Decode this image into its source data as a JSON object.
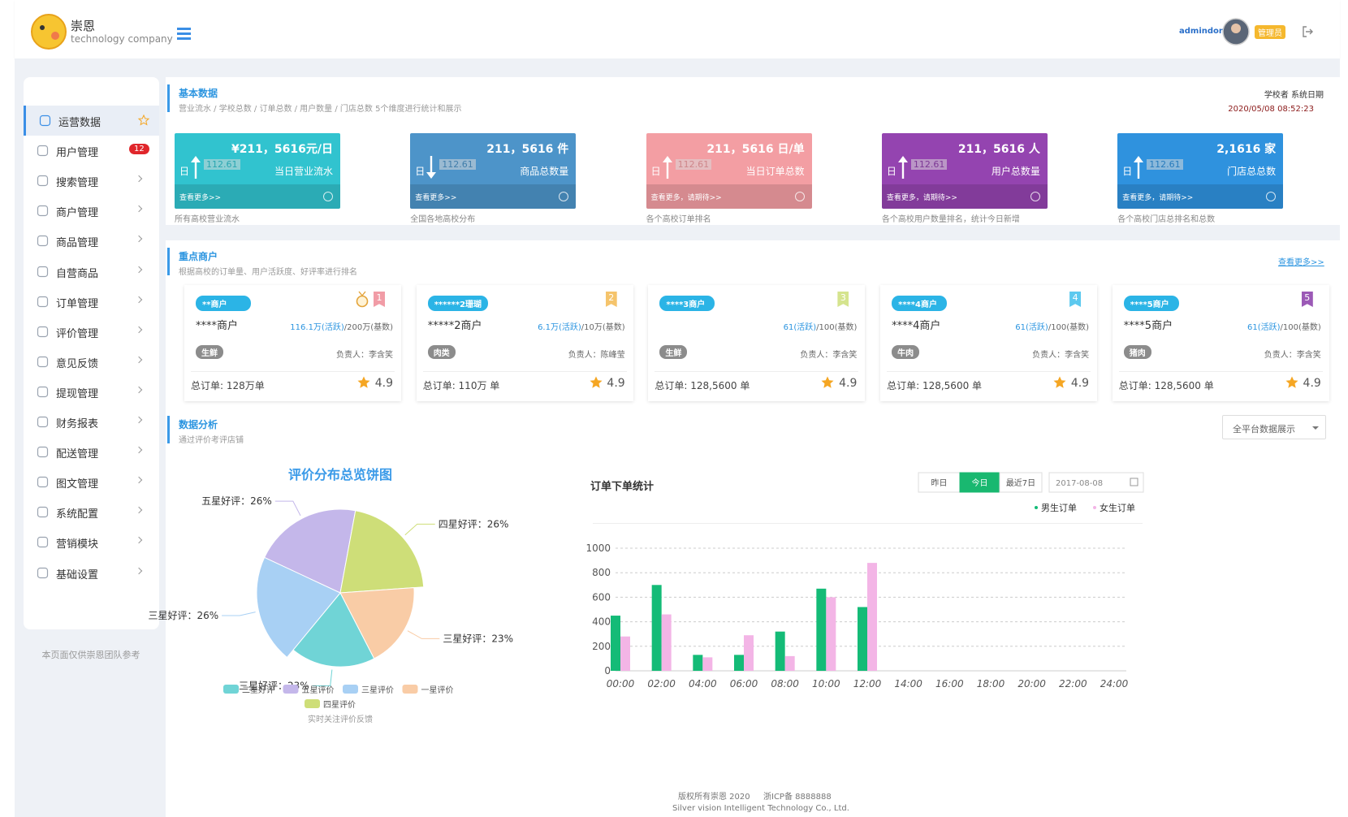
{
  "header": {
    "brand": "崇恩",
    "tagline": "technology company",
    "user": "admindon",
    "role": "管理员"
  },
  "sidebar": {
    "menu": [
      {
        "label": "运营数据",
        "active": true
      },
      {
        "label": "用户管理",
        "badge": 12
      },
      {
        "label": "搜索管理"
      },
      {
        "label": "商户管理"
      },
      {
        "label": "商品管理"
      },
      {
        "label": "自营商品"
      },
      {
        "label": "订单管理"
      },
      {
        "label": "评价管理"
      },
      {
        "label": "意见反馈"
      },
      {
        "label": "提现管理"
      },
      {
        "label": "财务报表"
      },
      {
        "label": "配送管理"
      },
      {
        "label": "图文管理"
      },
      {
        "label": "系统配置"
      },
      {
        "label": "营销模块"
      },
      {
        "label": "基础设置"
      }
    ],
    "note": "本页面仅供崇恩团队参考"
  },
  "basic": {
    "title": "基本数据",
    "subtitle": "营业流水 / 学校总数 / 订单总数 / 用户数量 / 门店总数 5个维度进行统计和展示",
    "right_label": "学校者  系统日期",
    "date": "2020/05/08  08:52:23",
    "cards": [
      {
        "value": "¥211，5616元/日",
        "period": "日",
        "change": "112.61",
        "label": "当日营业流水",
        "link": "查看更多>>",
        "caption": "所有高校营业流水",
        "color": "#31c3cf",
        "trend": "up"
      },
      {
        "value": "211，5616 件",
        "period": "日",
        "change": "112.61",
        "label": "商品总数量",
        "link": "查看更多>>",
        "caption": "全国各地高校分布",
        "color": "#4d94c9",
        "trend": "down"
      },
      {
        "value": "211，5616 日/单",
        "period": "日",
        "change": "112.61",
        "label": "当日订单总数",
        "link": "查看更多，请期待>>",
        "caption": "各个高校订单排名",
        "color": "#f39ea3",
        "trend": "up"
      },
      {
        "value": "211，5616 人",
        "period": "日",
        "change": "112.61",
        "label": "用户总数量",
        "link": "查看更多，请期待>>",
        "caption": "各个高校用户数量排名，统计今日新增",
        "color": "#9444b0",
        "trend": "up"
      },
      {
        "value": "2,1616 家",
        "period": "日",
        "change": "112.61",
        "label": "门店总总数",
        "link": "查看更多，请期待>>",
        "caption": "各个高校门店总排名和总数",
        "color": "#2f92de",
        "trend": "up"
      }
    ]
  },
  "merchants": {
    "title": "重点商户",
    "subtitle": "根据高校的订单量、用户活跃度、好评率进行排名",
    "more": "查看更多>>",
    "cards": [
      {
        "tag": "**商户",
        "rank": "1",
        "rank_color": "#f19ca6",
        "medal": true,
        "name": "****商户",
        "active": "116.1万(活跃)",
        "base": "/200万(基数)",
        "category": "生鲜",
        "owner": "负责人：李含笑",
        "orders": "总订单: 128万单",
        "rating": 4.9
      },
      {
        "tag": "******2珊瑚",
        "rank": "2",
        "rank_color": "#f5c46c",
        "name": "*****2商户",
        "active": "6.1万(活跃)",
        "base": "/10万(基数)",
        "category": "肉类",
        "owner": "负责人：陈峰莹",
        "orders": "总订单: 110万 单",
        "rating": 4.9
      },
      {
        "tag": "****3商户",
        "rank": "3",
        "rank_color": "#d5e48e",
        "active": "61(活跃)",
        "base": "/100(基数)",
        "category": "生鲜",
        "owner": "负责人：李含笑",
        "orders": "总订单: 128,5600 单",
        "rating": 4.9
      },
      {
        "tag": "****4商户",
        "rank": "4",
        "rank_color": "#5cc9ef",
        "name": "****4商户",
        "active": "61(活跃)",
        "base": "/100(基数)",
        "category": "牛肉",
        "owner": "负责人：李含笑",
        "orders": "总订单: 128,5600 单",
        "rating": 4.9
      },
      {
        "tag": "****5商户",
        "rank": "5",
        "rank_color": "#9b59b6",
        "name": "****5商户",
        "active": "61(活跃)",
        "base": "/100(基数)",
        "category": "猪肉",
        "owner": "负责人：李含笑",
        "orders": "总订单: 128,5600 单",
        "rating": 4.9
      }
    ]
  },
  "analysis": {
    "title": "数据分析",
    "subtitle": "通过评价考评店铺",
    "dropdown": "全平台数据展示"
  },
  "pie": {
    "type": "pie",
    "title": "评价分布总览饼图",
    "slices": [
      {
        "name": "二星好评",
        "label": "三星好评：23%",
        "value": 23,
        "color": "#70d4d6"
      },
      {
        "name": "五星评价",
        "label": "五星好评：26%",
        "value": 26,
        "color": "#c4b7ea"
      },
      {
        "name": "三星评价",
        "label": "三星好评：26%",
        "value": 26,
        "color": "#a8d0f4"
      },
      {
        "name": "一星评价",
        "label": "三星好评：23%",
        "value": 23,
        "color": "#f9cca6"
      },
      {
        "name": "四星评价",
        "label": "四星好评：26%",
        "value": 26,
        "color": "#cede78"
      }
    ],
    "note": "实时关注评价反馈"
  },
  "order_chart": {
    "type": "bar",
    "title": "订单下单统计",
    "tabs": [
      {
        "label": "昨日"
      },
      {
        "label": "今日",
        "active": true
      },
      {
        "label": "最近7日"
      }
    ],
    "date": "2017-08-08",
    "categories": [
      "00:00",
      "02:00",
      "04:00",
      "06:00",
      "08:00",
      "10:00",
      "12:00",
      "14:00",
      "16:00",
      "18:00",
      "20:00",
      "22:00",
      "24:00"
    ],
    "series": [
      {
        "name": "男生订单",
        "color": "#14bb77",
        "values": [
          450,
          700,
          130,
          130,
          320,
          670,
          520,
          null,
          null,
          null,
          null,
          null,
          null
        ]
      },
      {
        "name": "女生订单",
        "color": "#f3b5e6",
        "values": [
          280,
          460,
          110,
          290,
          120,
          600,
          880,
          null,
          null,
          null,
          null,
          null,
          null
        ]
      }
    ],
    "ylim": [
      0,
      1000
    ],
    "yticks": [
      0,
      200,
      400,
      600,
      800,
      1000
    ],
    "grid": true
  },
  "footer": {
    "copyright": "版权所有崇恩 2020",
    "icp": "浙ICP备 8888888",
    "company": "Silver vision Intelligent Technology Co., Ltd."
  }
}
